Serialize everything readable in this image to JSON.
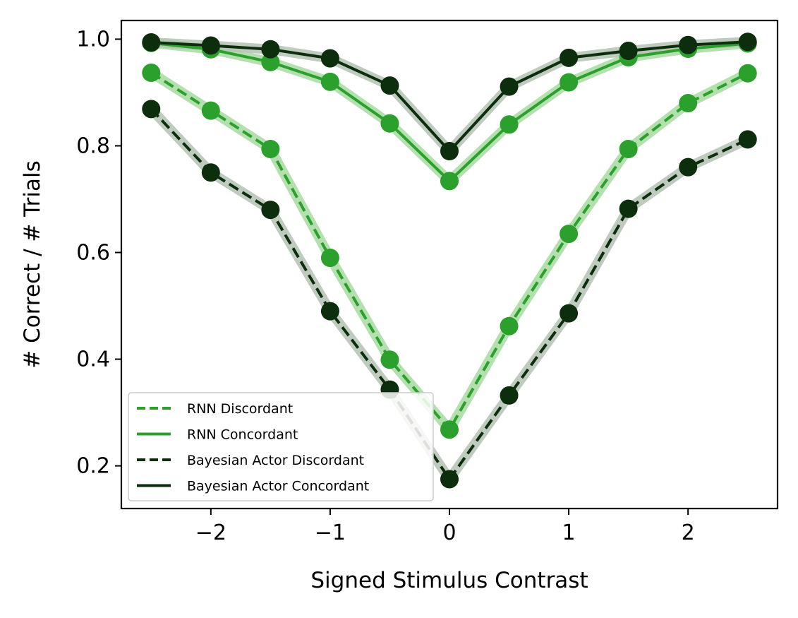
{
  "chart_data": {
    "type": "line",
    "title": "",
    "xlabel": "Signed Stimulus Contrast",
    "ylabel": "# Correct / # Trials",
    "xlim": [
      -2.75,
      2.75
    ],
    "ylim": [
      0.12,
      1.035
    ],
    "xticks": [
      -2,
      -1,
      0,
      1,
      2
    ],
    "xtick_labels": [
      "−2",
      "−1",
      "0",
      "1",
      "2"
    ],
    "yticks": [
      0.2,
      0.4,
      0.6,
      0.8,
      1.0
    ],
    "ytick_labels": [
      "0.2",
      "0.4",
      "0.6",
      "0.8",
      "1.0"
    ],
    "grid": false,
    "legend_position": "lower-left",
    "x": [
      -2.5,
      -2,
      -1.5,
      -1,
      -0.5,
      0,
      0.5,
      1,
      1.5,
      2,
      2.5
    ],
    "series": [
      {
        "name": "RNN Discordant",
        "linestyle": "dashed",
        "color": "#2ca02c",
        "band_color": "#a6dba0",
        "values": [
          0.937,
          0.866,
          0.794,
          0.59,
          0.399,
          0.268,
          0.462,
          0.635,
          0.794,
          0.88,
          0.936
        ]
      },
      {
        "name": "RNN Concordant",
        "linestyle": "solid",
        "color": "#2ca02c",
        "band_color": "#a6dba0",
        "values": [
          0.993,
          0.981,
          0.957,
          0.92,
          0.842,
          0.734,
          0.84,
          0.919,
          0.966,
          0.982,
          0.992
        ]
      },
      {
        "name": "Bayesian Actor Discordant",
        "linestyle": "dashed",
        "color": "#0d2e0d",
        "band_color": "#b4c2b4",
        "values": [
          0.869,
          0.75,
          0.68,
          0.49,
          0.343,
          0.175,
          0.332,
          0.486,
          0.682,
          0.76,
          0.812
        ]
      },
      {
        "name": "Bayesian Actor Concordant",
        "linestyle": "solid",
        "color": "#0d2e0d",
        "band_color": "#b4c2b4",
        "values": [
          0.994,
          0.988,
          0.981,
          0.964,
          0.913,
          0.79,
          0.911,
          0.965,
          0.978,
          0.989,
          0.995
        ]
      }
    ]
  }
}
